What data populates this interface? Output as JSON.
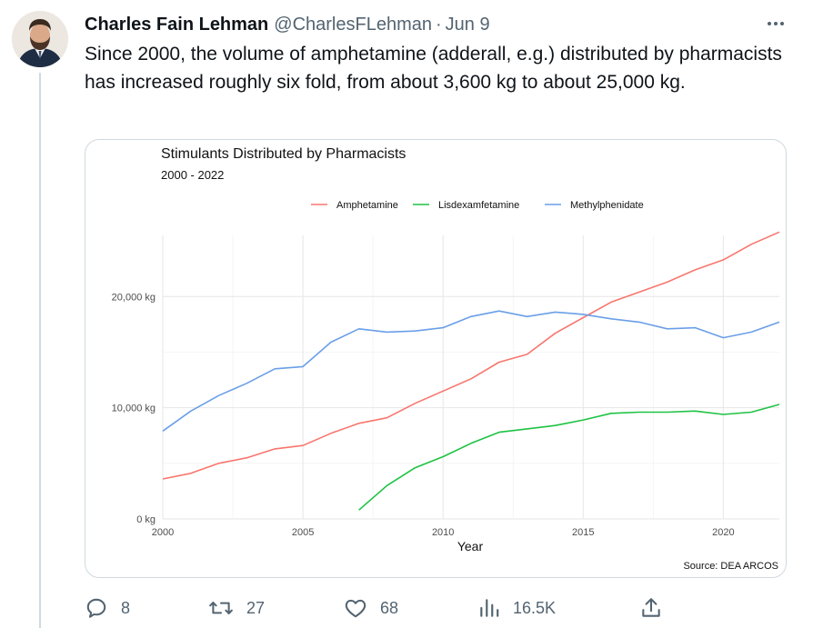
{
  "tweet": {
    "author_name": "Charles Fain Lehman",
    "author_handle": "@CharlesFLehman",
    "separator": "·",
    "date": "Jun 9",
    "more_icon": "more-horizontal-icon",
    "text": "Since 2000, the volume of amphetamine (adderall, e.g.) distributed by pharmacists has increased roughly six fold, from about 3,600 kg to about 25,000 kg."
  },
  "actions": {
    "replies": "8",
    "retweets": "27",
    "likes": "68",
    "views": "16.5K"
  },
  "chart_data": {
    "type": "line",
    "title": "Stimulants Distributed by Pharmacists",
    "subtitle": "2000 - 2022",
    "xlabel": "Year",
    "ylabel": "",
    "source": "Source: DEA ARCOS",
    "legend_position": "top",
    "grid": true,
    "xlim": [
      2000,
      2022
    ],
    "ylim": [
      0,
      25500
    ],
    "x_ticks": [
      {
        "value": 2000,
        "label": "2000"
      },
      {
        "value": 2005,
        "label": "2005"
      },
      {
        "value": 2010,
        "label": "2010"
      },
      {
        "value": 2015,
        "label": "2015"
      },
      {
        "value": 2020,
        "label": "2020"
      }
    ],
    "y_ticks": [
      {
        "value": 0,
        "label": "0 kg"
      },
      {
        "value": 10000,
        "label": "10,000 kg"
      },
      {
        "value": 20000,
        "label": "20,000 kg"
      }
    ],
    "series": [
      {
        "name": "Amphetamine",
        "color": "#f8766d",
        "x": [
          2000,
          2001,
          2002,
          2003,
          2004,
          2005,
          2006,
          2007,
          2008,
          2009,
          2010,
          2011,
          2012,
          2013,
          2014,
          2015,
          2016,
          2017,
          2018,
          2019,
          2020,
          2021,
          2022
        ],
        "values": [
          3600,
          4100,
          5000,
          5500,
          6300,
          6600,
          7700,
          8600,
          9100,
          10400,
          11500,
          12600,
          14100,
          14800,
          16700,
          18100,
          19500,
          20400,
          21300,
          22400,
          23300,
          24700,
          25800
        ]
      },
      {
        "name": "Lisdexamfetamine",
        "color": "#1ec243",
        "x": [
          2007,
          2008,
          2009,
          2010,
          2011,
          2012,
          2013,
          2014,
          2015,
          2016,
          2017,
          2018,
          2019,
          2020,
          2021,
          2022
        ],
        "values": [
          800,
          3000,
          4600,
          5600,
          6800,
          7800,
          8100,
          8400,
          8900,
          9500,
          9600,
          9600,
          9700,
          9400,
          9600,
          10300
        ]
      },
      {
        "name": "Methylphenidate",
        "color": "#6a9fe8",
        "x": [
          2000,
          2001,
          2002,
          2003,
          2004,
          2005,
          2006,
          2007,
          2008,
          2009,
          2010,
          2011,
          2012,
          2013,
          2014,
          2015,
          2016,
          2017,
          2018,
          2019,
          2020,
          2021,
          2022
        ],
        "values": [
          7900,
          9700,
          11100,
          12200,
          13500,
          13700,
          15900,
          17100,
          16800,
          16900,
          17200,
          18200,
          18700,
          18200,
          18600,
          18400,
          18000,
          17700,
          17100,
          17200,
          16300,
          16800,
          17700
        ]
      }
    ]
  }
}
